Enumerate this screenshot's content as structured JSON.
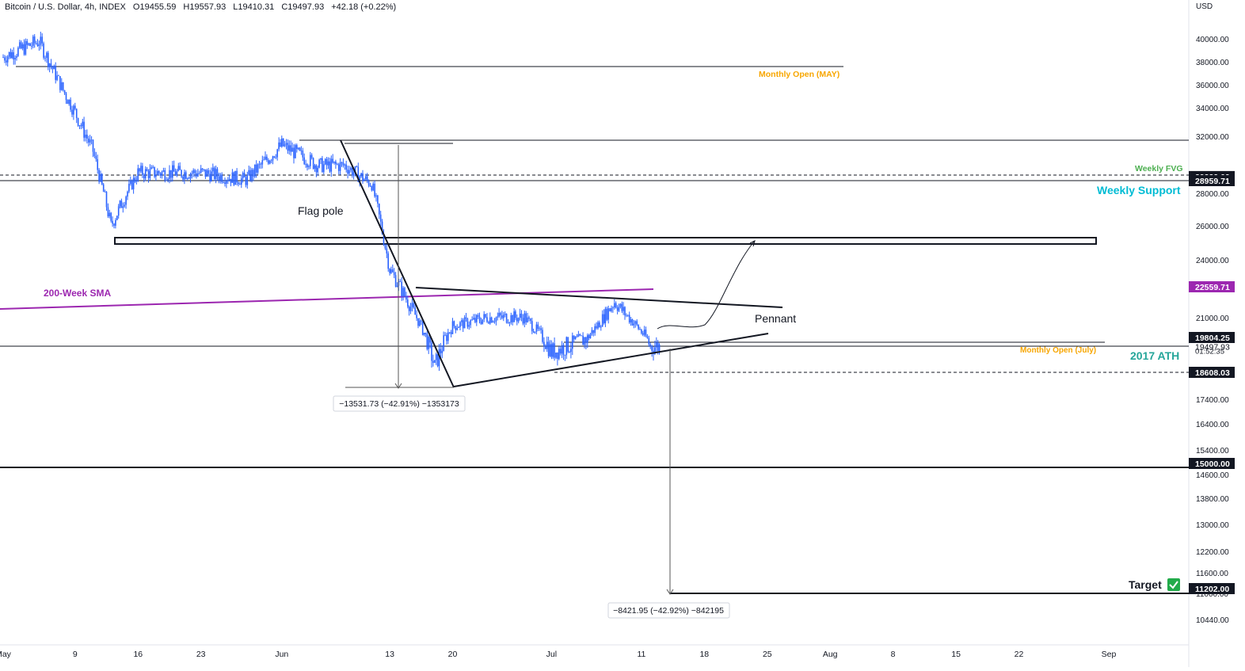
{
  "header": {
    "symbol": "Bitcoin / U.S. Dollar, 4h, INDEX",
    "open": "O19455.59",
    "high": "H19557.93",
    "low": "L19410.31",
    "close": "C19497.93",
    "change": "+42.18 (+0.22%)"
  },
  "axis": {
    "currency": "USD",
    "y_ticks": [
      "40000.00",
      "38000.00",
      "36000.00",
      "34000.00",
      "32000.00",
      "28000.00",
      "26000.00",
      "24000.00",
      "21000.00",
      "17400.00",
      "16400.00",
      "15400.00",
      "14600.00",
      "13800.00",
      "13000.00",
      "12200.00",
      "11600.00",
      "11000.00",
      "10440.00"
    ],
    "x_ticks": [
      "May",
      "9",
      "16",
      "23",
      "Jun",
      "13",
      "20",
      "Jul",
      "11",
      "18",
      "25",
      "Aug",
      "8",
      "15",
      "22",
      "Sep"
    ]
  },
  "price_labels": [
    {
      "text": "29239.09",
      "value": 29239.09,
      "kind": "dark"
    },
    {
      "text": "28959.71",
      "value": 28959.71,
      "kind": "dark"
    },
    {
      "text": "22559.71",
      "value": 22559.71,
      "kind": "purple"
    },
    {
      "text": "19804.25",
      "value": 19804.25,
      "kind": "dark"
    },
    {
      "text": "19497.93",
      "value": 19497.93,
      "kind": "plain"
    },
    {
      "text": "01:52:35",
      "value": 19350,
      "kind": "plain-sub"
    },
    {
      "text": "18608.03",
      "value": 18608.03,
      "kind": "dark"
    },
    {
      "text": "15000.00",
      "value": 15000,
      "kind": "dark"
    },
    {
      "text": "11202.00",
      "value": 11202,
      "kind": "dark"
    }
  ],
  "annotations": {
    "monthly_open_may": "Monthly Open (MAY)",
    "weekly_fvg": "Weekly FVG",
    "weekly_support": "Weekly Support",
    "flag_pole": "Flag pole",
    "sma_label": "200-Week SMA",
    "pennant": "Pennant",
    "monthly_open_july": "Monthly Open (July)",
    "ath_2017": "2017 ATH",
    "target": "Target",
    "measure_1": "−13531.73 (−42.91%) −1353173",
    "measure_2": "−8421.95 (−42.92%) −842195"
  },
  "colors": {
    "candle": "#2962ff",
    "sma": "#9c27b0",
    "monthly_open": "#f7a600",
    "weekly_fvg": "#4caf50",
    "weekly_support": "#00bcd4",
    "ath": "#26a69a",
    "target_check": "#22ab4a"
  },
  "chart_data": {
    "type": "line",
    "title": "Bitcoin / U.S. Dollar, 4h, INDEX",
    "x": [
      "May 1",
      "May 5",
      "May 8",
      "May 11",
      "May 13",
      "May 16",
      "May 23",
      "May 28",
      "Jun 1",
      "Jun 5",
      "Jun 8",
      "Jun 11",
      "Jun 13",
      "Jun 16",
      "Jun 18",
      "Jun 20",
      "Jun 24",
      "Jun 28",
      "Jul 1",
      "Jul 5",
      "Jul 8",
      "Jul 10",
      "Jul 12",
      "Jul 13"
    ],
    "series": [
      {
        "values": [
          38400,
          39800,
          35000,
          31000,
          26000,
          29500,
          29500,
          29000,
          31400,
          30000,
          30000,
          28700,
          23500,
          21000,
          18800,
          20500,
          21000,
          21000,
          19300,
          19800,
          21800,
          20800,
          19500,
          19498
        ]
      }
    ],
    "ylabel": "USD",
    "ylim": [
      10000,
      41000
    ],
    "levels": [
      37700,
      31900,
      29239.09,
      28959.71,
      19804.25,
      19804.25,
      18608.03,
      15000,
      11202
    ]
  }
}
